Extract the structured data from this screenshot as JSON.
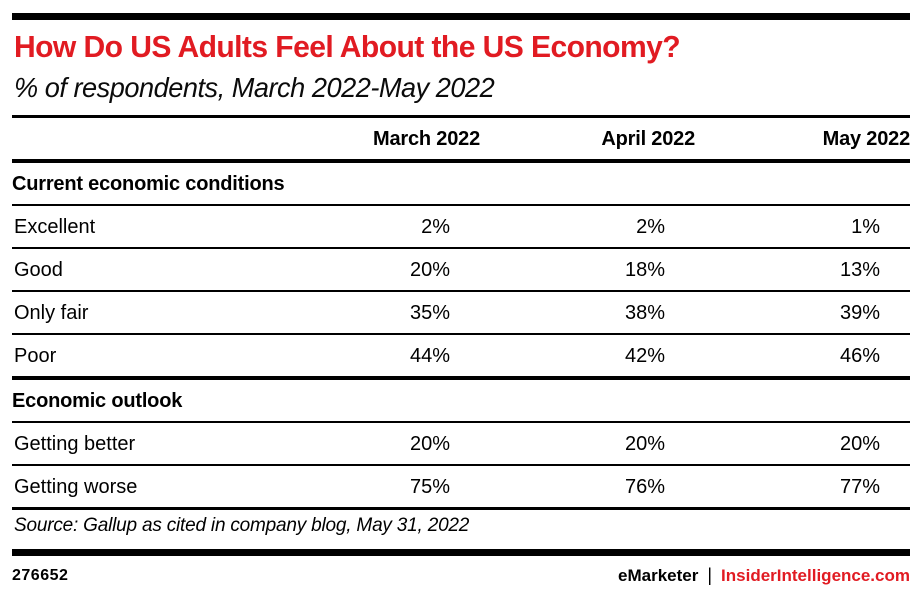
{
  "colors": {
    "accent_red": "#e11b22",
    "ink": "#000000",
    "background": "#ffffff"
  },
  "chart_data": {
    "type": "table",
    "title": "How Do US Adults Feel About the US Economy?",
    "subtitle": "% of respondents, March 2022-May 2022",
    "unit": "%",
    "columns": [
      "March 2022",
      "April 2022",
      "May 2022"
    ],
    "sections": [
      {
        "label": "Current economic conditions",
        "rows": [
          {
            "label": "Excellent",
            "values": [
              2,
              2,
              1
            ]
          },
          {
            "label": "Good",
            "values": [
              20,
              18,
              13
            ]
          },
          {
            "label": "Only fair",
            "values": [
              35,
              38,
              39
            ]
          },
          {
            "label": "Poor",
            "values": [
              44,
              42,
              46
            ]
          }
        ]
      },
      {
        "label": "Economic outlook",
        "rows": [
          {
            "label": "Getting better",
            "values": [
              20,
              20,
              20
            ]
          },
          {
            "label": "Getting worse",
            "values": [
              75,
              76,
              77
            ]
          }
        ]
      }
    ]
  },
  "source_note": "Source: Gallup as cited in company blog, May 31, 2022",
  "footer": {
    "chart_id": "276652",
    "brand_primary": "eMarketer",
    "brand_separator": "|",
    "brand_secondary": "InsiderIntelligence.com"
  }
}
